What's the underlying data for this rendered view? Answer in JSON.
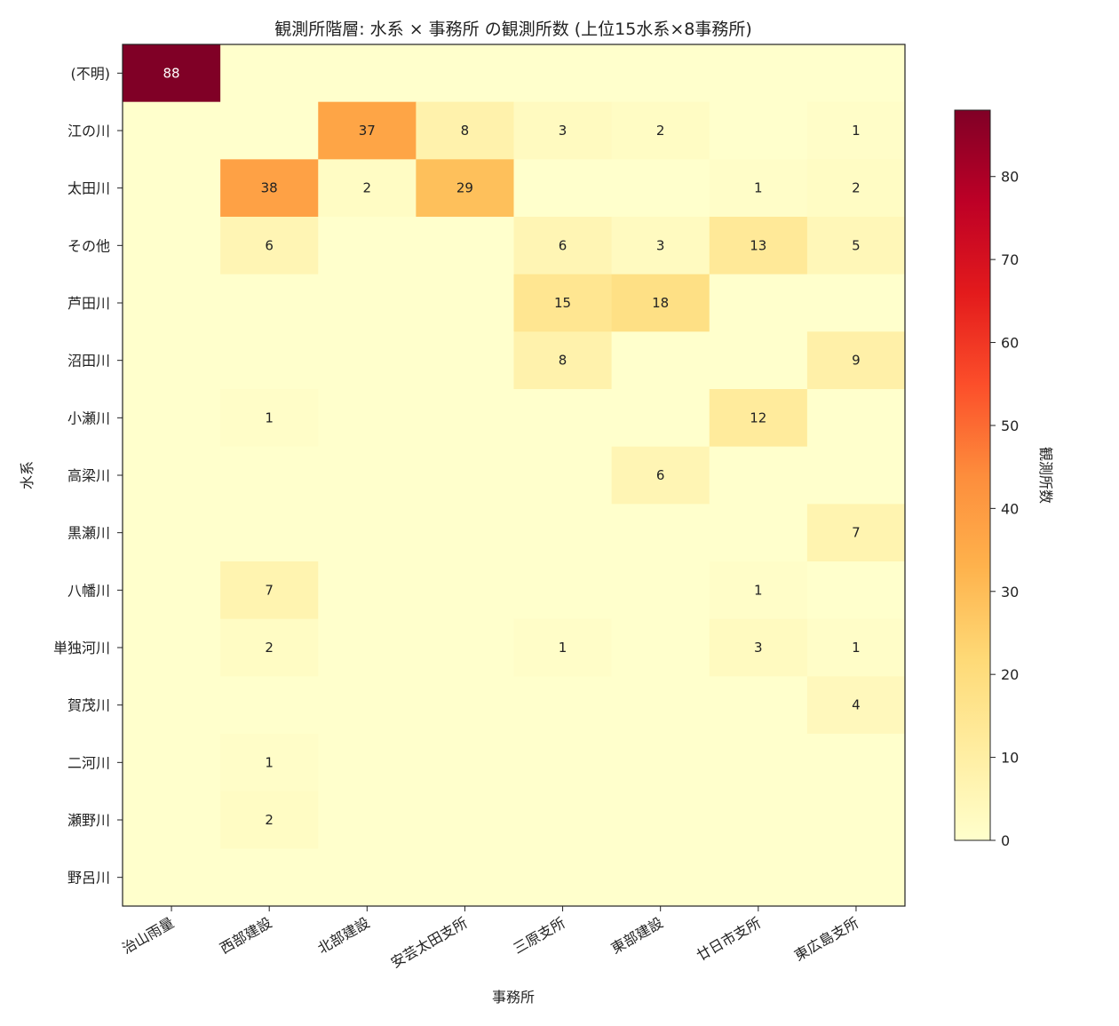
{
  "chart_data": {
    "type": "heatmap",
    "title": "観測所階層: 水系 × 事務所 の観測所数 (上位15水系×8事務所)",
    "xlabel": "事務所",
    "ylabel": "水系",
    "colorbar_label": "観測所数",
    "colormap": "YlOrRd",
    "color_range": [
      0,
      88
    ],
    "colorbar_ticks": [
      "0",
      "10",
      "20",
      "30",
      "40",
      "50",
      "60",
      "70",
      "80"
    ],
    "x_categories": [
      "治山雨量",
      "西部建設",
      "北部建設",
      "安芸太田支所",
      "三原支所",
      "東部建設",
      "廿日市支所",
      "東広島支所"
    ],
    "y_categories": [
      "(不明)",
      "江の川",
      "太田川",
      "その他",
      "芦田川",
      "沼田川",
      "小瀬川",
      "高梁川",
      "黒瀬川",
      "八幡川",
      "単独河川",
      "賀茂川",
      "二河川",
      "瀬野川",
      "野呂川"
    ],
    "values": [
      [
        88,
        0,
        0,
        0,
        0,
        0,
        0,
        0
      ],
      [
        0,
        0,
        37,
        8,
        3,
        2,
        0,
        1
      ],
      [
        0,
        38,
        2,
        29,
        0,
        0,
        1,
        2
      ],
      [
        0,
        6,
        0,
        0,
        6,
        3,
        13,
        5
      ],
      [
        0,
        0,
        0,
        0,
        15,
        18,
        0,
        0
      ],
      [
        0,
        0,
        0,
        0,
        8,
        0,
        0,
        9
      ],
      [
        0,
        1,
        0,
        0,
        0,
        0,
        12,
        0
      ],
      [
        0,
        0,
        0,
        0,
        0,
        6,
        0,
        0
      ],
      [
        0,
        0,
        0,
        0,
        0,
        0,
        0,
        7
      ],
      [
        0,
        7,
        0,
        0,
        0,
        0,
        1,
        0
      ],
      [
        0,
        2,
        0,
        0,
        1,
        0,
        3,
        1
      ],
      [
        0,
        0,
        0,
        0,
        0,
        0,
        0,
        4
      ],
      [
        0,
        1,
        0,
        0,
        0,
        0,
        0,
        0
      ],
      [
        0,
        2,
        0,
        0,
        0,
        0,
        0,
        0
      ],
      [
        0,
        0,
        0,
        0,
        0,
        0,
        0,
        0
      ]
    ]
  }
}
